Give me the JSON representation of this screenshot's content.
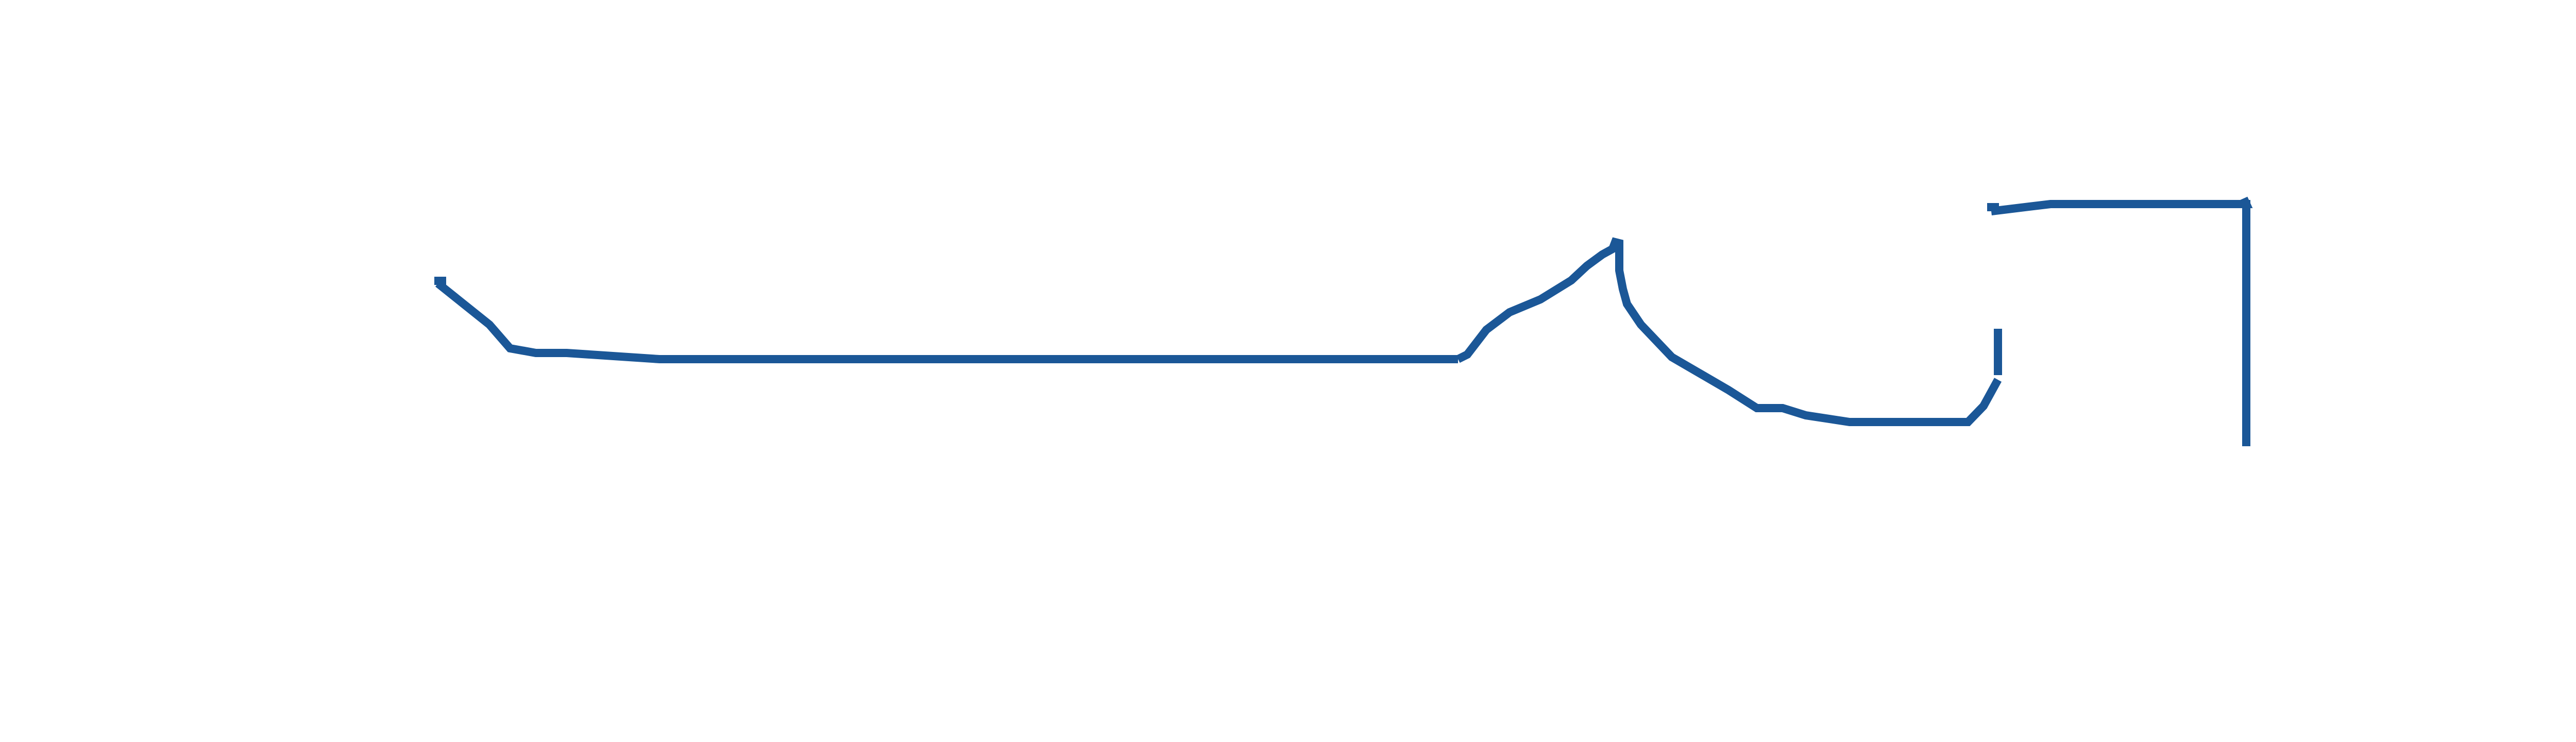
{
  "diagram": {
    "background_color": "#ffffff",
    "stroke_color": "#1b5797",
    "paths": [
      {
        "name": "outline-left-profile"
      },
      {
        "name": "outline-center-peak"
      },
      {
        "name": "outline-right-bracket-lower"
      },
      {
        "name": "outline-right-bracket-upper"
      },
      {
        "name": "outline-right-vertical-bar"
      }
    ]
  }
}
